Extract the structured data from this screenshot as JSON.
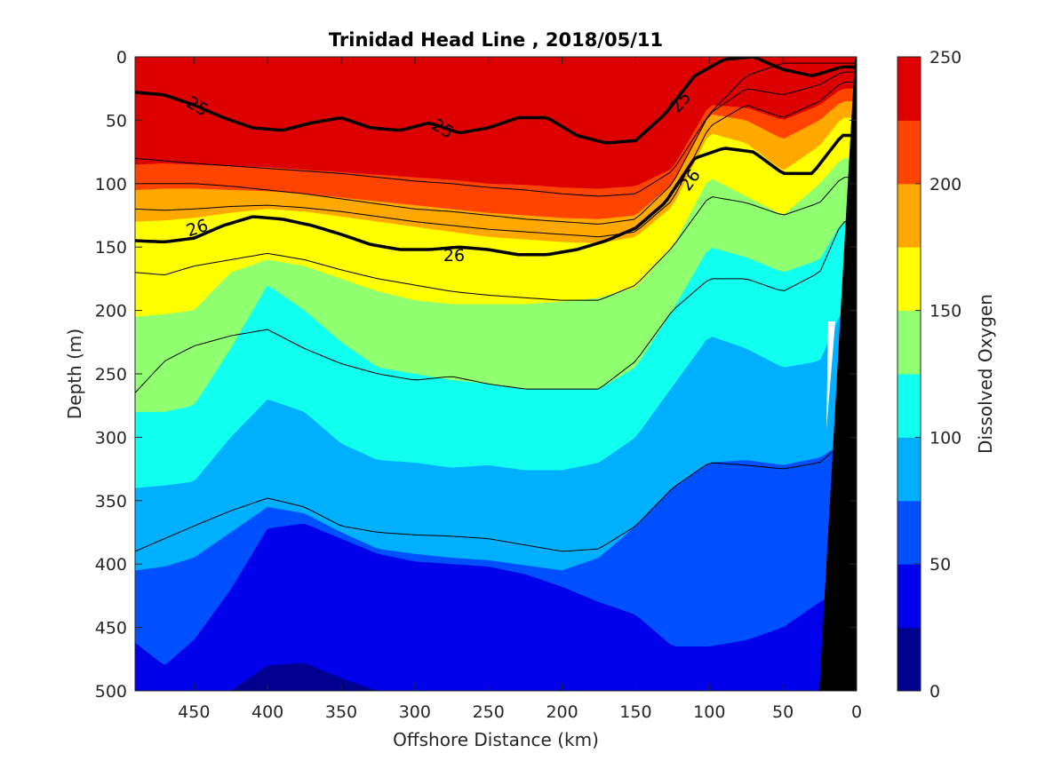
{
  "chart_data": {
    "type": "heatmap",
    "title": "Trinidad Head Line , 2018/05/11",
    "xlabel": "Offshore Distance (km)",
    "ylabel": "Depth (m)",
    "xlim": [
      490,
      0
    ],
    "ylim": [
      0,
      500
    ],
    "x_reversed": true,
    "y_reversed": true,
    "xticks": [
      "450",
      "400",
      "350",
      "300",
      "250",
      "200",
      "150",
      "100",
      "50",
      "0"
    ],
    "yticks": [
      "0",
      "50",
      "100",
      "150",
      "200",
      "250",
      "300",
      "350",
      "400",
      "450",
      "500"
    ],
    "colorbar": {
      "label": "Dissolved Oxygen",
      "ticks": [
        "0",
        "50",
        "100",
        "150",
        "200",
        "250"
      ],
      "levels": [
        0,
        25,
        50,
        75,
        100,
        125,
        150,
        175,
        200,
        225,
        250
      ],
      "colors": [
        "#00008f",
        "#0000ea",
        "#0050ff",
        "#00b0ff",
        "#10ffee",
        "#90ff70",
        "#ffff00",
        "#ffa800",
        "#ff4400",
        "#dc0000"
      ]
    },
    "colormap": "jet",
    "x_profile": [
      490,
      470,
      450,
      425,
      400,
      375,
      350,
      325,
      300,
      275,
      250,
      225,
      200,
      175,
      150,
      125,
      100,
      75,
      50,
      25,
      10
    ],
    "oxygen_boundaries_depth_m": {
      "225": [
        0,
        0,
        0,
        0,
        0,
        0,
        0,
        0,
        0,
        0,
        0,
        0,
        0,
        0,
        45,
        30,
        10,
        0,
        0,
        0,
        0
      ],
      "200": [
        85,
        84,
        85,
        86,
        87,
        89,
        91,
        93,
        95,
        97,
        100,
        101,
        103,
        104,
        102,
        88,
        38,
        40,
        50,
        38,
        25
      ],
      "175": [
        105,
        104,
        104,
        105,
        106,
        108,
        111,
        114,
        117,
        120,
        123,
        125,
        127,
        128,
        125,
        100,
        45,
        50,
        65,
        50,
        35
      ],
      "150": [
        130,
        129,
        127,
        123,
        120,
        122,
        126,
        130,
        134,
        138,
        142,
        144,
        146,
        147,
        142,
        118,
        60,
        68,
        90,
        70,
        48
      ],
      "125": [
        205,
        203,
        200,
        170,
        160,
        165,
        175,
        185,
        192,
        195,
        195,
        195,
        193,
        190,
        182,
        150,
        95,
        110,
        125,
        100,
        80
      ],
      "100": [
        280,
        280,
        275,
        230,
        180,
        200,
        225,
        245,
        250,
        255,
        258,
        262,
        262,
        262,
        245,
        200,
        150,
        158,
        170,
        160,
        130
      ],
      "75": [
        340,
        338,
        335,
        300,
        270,
        280,
        305,
        318,
        320,
        324,
        322,
        326,
        326,
        320,
        300,
        260,
        220,
        230,
        245,
        240,
        200
      ],
      "50": [
        405,
        402,
        395,
        375,
        355,
        360,
        375,
        388,
        392,
        395,
        397,
        401,
        405,
        395,
        370,
        340,
        320,
        318,
        322,
        316,
        305
      ],
      "25": [
        462,
        480,
        460,
        420,
        372,
        368,
        380,
        392,
        398,
        400,
        402,
        408,
        418,
        430,
        440,
        465,
        465,
        460,
        450,
        430,
        420
      ],
      "0": [
        500,
        500,
        500,
        500,
        480,
        478,
        490,
        500,
        500,
        500,
        500,
        500,
        500,
        500,
        500,
        500,
        500,
        500,
        500,
        500,
        500
      ]
    },
    "density_contours": {
      "labeled": [
        {
          "label": "25",
          "depth_m": [
            28,
            30,
            38,
            48,
            56,
            58,
            52,
            48,
            56,
            58,
            52,
            60,
            56,
            48,
            48,
            62,
            68,
            66,
            45,
            15,
            2,
            0,
            10,
            15,
            8
          ]
        },
        {
          "label": "26",
          "depth_m": [
            145,
            146,
            143,
            133,
            126,
            128,
            133,
            140,
            148,
            152,
            152,
            150,
            152,
            156,
            156,
            152,
            145,
            135,
            115,
            80,
            72,
            75,
            92,
            92,
            62
          ]
        }
      ],
      "thin_depth_m": [
        [
          80,
          82,
          84,
          86,
          88,
          90,
          92,
          95,
          98,
          100,
          103,
          105,
          108,
          110,
          108,
          90,
          45,
          15,
          5,
          5,
          5
        ],
        [
          100,
          100,
          100,
          102,
          105,
          108,
          112,
          116,
          120,
          122,
          125,
          128,
          130,
          132,
          128,
          100,
          45,
          25,
          30,
          22,
          12
        ],
        [
          120,
          121,
          120,
          118,
          117,
          119,
          122,
          126,
          130,
          133,
          136,
          138,
          140,
          142,
          138,
          113,
          55,
          38,
          48,
          35,
          20
        ],
        [
          170,
          172,
          165,
          160,
          155,
          160,
          168,
          175,
          180,
          185,
          188,
          190,
          192,
          192,
          180,
          150,
          110,
          115,
          125,
          115,
          95
        ],
        [
          265,
          240,
          228,
          220,
          215,
          230,
          242,
          250,
          255,
          252,
          258,
          262,
          262,
          262,
          240,
          200,
          175,
          175,
          185,
          170,
          130
        ],
        [
          390,
          380,
          370,
          358,
          348,
          355,
          370,
          375,
          377,
          378,
          380,
          385,
          390,
          388,
          370,
          340,
          320,
          322,
          325,
          320,
          305
        ]
      ]
    },
    "bottom_topography": "black wedge near 0 km (continental slope)"
  }
}
